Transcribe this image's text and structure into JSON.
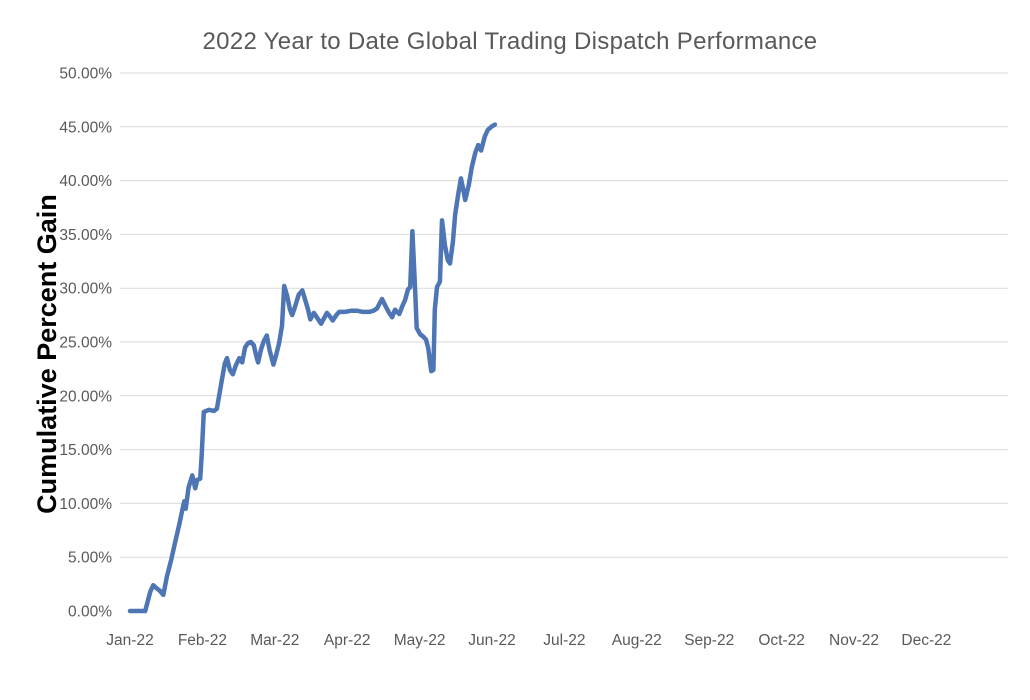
{
  "chart_data": {
    "type": "line",
    "title": "2022 Year to Date Global Trading Dispatch Performance",
    "xlabel": "",
    "ylabel": "Cumulative Percent Gain",
    "x_tick_labels": [
      "Jan-22",
      "Feb-22",
      "Mar-22",
      "Apr-22",
      "May-22",
      "Jun-22",
      "Jul-22",
      "Aug-22",
      "Sep-22",
      "Oct-22",
      "Nov-22",
      "Dec-22"
    ],
    "y_tick_labels": [
      "0.00%",
      "5.00%",
      "10.00%",
      "15.00%",
      "20.00%",
      "25.00%",
      "30.00%",
      "35.00%",
      "40.00%",
      "45.00%",
      "50.00%"
    ],
    "ylim": [
      0,
      50
    ],
    "y_tick_step": 5,
    "x_unit": "months (0 = Jan-22 tick position, fractional values = days within the year)",
    "x_data_range": [
      0,
      5.04
    ],
    "grid": "horizontal gridlines only at 5%-50%, no 0% line, no vertical gridlines",
    "legend": "none",
    "series": [
      {
        "name": "Cumulative Percent Gain",
        "color": "#4e76b4",
        "points": [
          [
            0.0,
            0.0
          ],
          [
            0.1,
            0.0
          ],
          [
            0.21,
            0.0
          ],
          [
            0.28,
            1.8
          ],
          [
            0.32,
            2.4
          ],
          [
            0.37,
            2.1
          ],
          [
            0.41,
            1.9
          ],
          [
            0.46,
            1.5
          ],
          [
            0.51,
            3.2
          ],
          [
            0.57,
            4.8
          ],
          [
            0.62,
            6.3
          ],
          [
            0.68,
            8.0
          ],
          [
            0.72,
            9.3
          ],
          [
            0.75,
            10.2
          ],
          [
            0.77,
            9.5
          ],
          [
            0.81,
            11.5
          ],
          [
            0.86,
            12.6
          ],
          [
            0.9,
            11.4
          ],
          [
            0.93,
            12.2
          ],
          [
            0.97,
            12.3
          ],
          [
            0.99,
            14.5
          ],
          [
            1.02,
            18.5
          ],
          [
            1.09,
            18.7
          ],
          [
            1.16,
            18.6
          ],
          [
            1.2,
            18.8
          ],
          [
            1.27,
            21.5
          ],
          [
            1.31,
            23.0
          ],
          [
            1.34,
            23.5
          ],
          [
            1.38,
            22.4
          ],
          [
            1.42,
            22.0
          ],
          [
            1.46,
            22.8
          ],
          [
            1.51,
            23.5
          ],
          [
            1.55,
            23.1
          ],
          [
            1.59,
            24.5
          ],
          [
            1.63,
            24.9
          ],
          [
            1.67,
            25.0
          ],
          [
            1.71,
            24.7
          ],
          [
            1.74,
            23.8
          ],
          [
            1.77,
            23.1
          ],
          [
            1.81,
            24.3
          ],
          [
            1.85,
            25.1
          ],
          [
            1.89,
            25.6
          ],
          [
            1.93,
            24.2
          ],
          [
            1.98,
            22.9
          ],
          [
            2.02,
            23.8
          ],
          [
            2.06,
            24.9
          ],
          [
            2.1,
            26.5
          ],
          [
            2.13,
            30.2
          ],
          [
            2.17,
            29.3
          ],
          [
            2.21,
            28.0
          ],
          [
            2.24,
            27.5
          ],
          [
            2.28,
            28.3
          ],
          [
            2.33,
            29.4
          ],
          [
            2.38,
            29.8
          ],
          [
            2.42,
            28.9
          ],
          [
            2.46,
            28.0
          ],
          [
            2.49,
            27.1
          ],
          [
            2.54,
            27.7
          ],
          [
            2.58,
            27.3
          ],
          [
            2.64,
            26.7
          ],
          [
            2.68,
            27.2
          ],
          [
            2.72,
            27.7
          ],
          [
            2.76,
            27.4
          ],
          [
            2.8,
            27.0
          ],
          [
            2.85,
            27.5
          ],
          [
            2.89,
            27.8
          ],
          [
            2.97,
            27.8
          ],
          [
            3.05,
            27.9
          ],
          [
            3.14,
            27.9
          ],
          [
            3.22,
            27.8
          ],
          [
            3.3,
            27.8
          ],
          [
            3.36,
            27.9
          ],
          [
            3.41,
            28.1
          ],
          [
            3.48,
            29.0
          ],
          [
            3.54,
            28.2
          ],
          [
            3.58,
            27.7
          ],
          [
            3.62,
            27.3
          ],
          [
            3.66,
            28.0
          ],
          [
            3.72,
            27.6
          ],
          [
            3.76,
            28.3
          ],
          [
            3.8,
            28.9
          ],
          [
            3.84,
            29.9
          ],
          [
            3.87,
            30.1
          ],
          [
            3.9,
            35.3
          ],
          [
            3.94,
            29.5
          ],
          [
            3.96,
            26.3
          ],
          [
            4.01,
            25.7
          ],
          [
            4.05,
            25.5
          ],
          [
            4.09,
            25.2
          ],
          [
            4.12,
            24.4
          ],
          [
            4.16,
            22.3
          ],
          [
            4.19,
            22.4
          ],
          [
            4.21,
            28.0
          ],
          [
            4.24,
            30.1
          ],
          [
            4.28,
            30.6
          ],
          [
            4.31,
            36.3
          ],
          [
            4.35,
            34.0
          ],
          [
            4.39,
            32.6
          ],
          [
            4.42,
            32.3
          ],
          [
            4.46,
            34.3
          ],
          [
            4.49,
            36.8
          ],
          [
            4.53,
            38.6
          ],
          [
            4.57,
            40.2
          ],
          [
            4.6,
            39.3
          ],
          [
            4.63,
            38.2
          ],
          [
            4.68,
            39.6
          ],
          [
            4.72,
            41.2
          ],
          [
            4.77,
            42.6
          ],
          [
            4.81,
            43.3
          ],
          [
            4.85,
            42.8
          ],
          [
            4.9,
            44.1
          ],
          [
            4.94,
            44.7
          ],
          [
            4.99,
            45.0
          ],
          [
            5.04,
            45.2
          ]
        ]
      }
    ],
    "styles": {
      "background": "#ffffff",
      "title_color": "#595959",
      "tick_label_color": "#595959",
      "axis_title_color": "#000000",
      "gridline_color": "#d9d9d9",
      "line_width": 4.5
    }
  }
}
